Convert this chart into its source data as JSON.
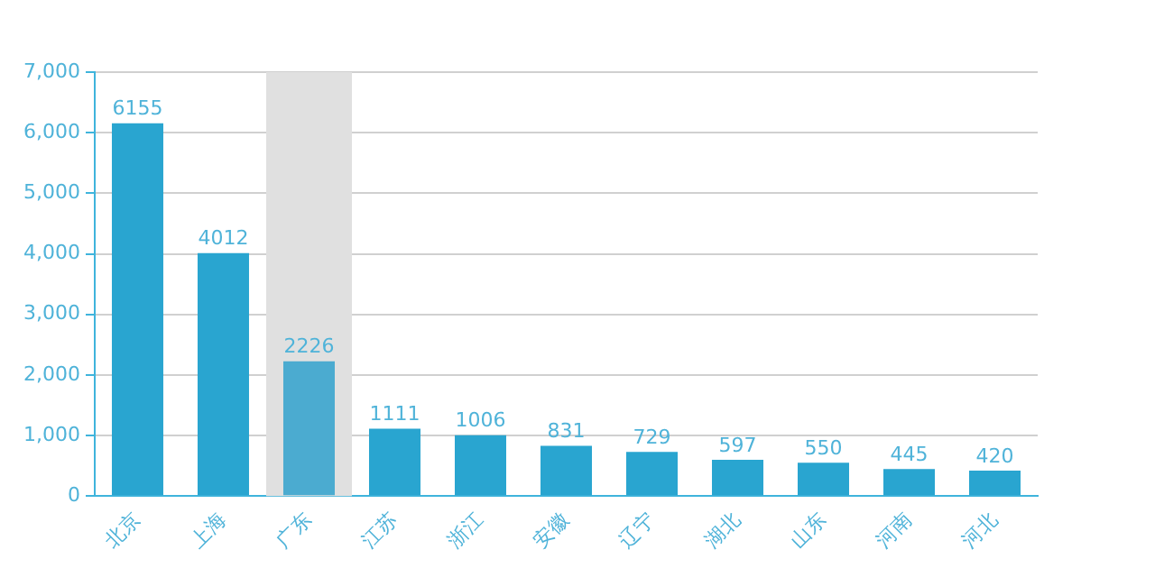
{
  "chart_data": {
    "type": "bar",
    "categories": [
      "北京",
      "上海",
      "广东",
      "江苏",
      "浙江",
      "安徽",
      "辽宁",
      "湖北",
      "山东",
      "河南",
      "河北"
    ],
    "values": [
      6155,
      4012,
      2226,
      1111,
      1006,
      831,
      729,
      597,
      550,
      445,
      420
    ],
    "colors": [
      "#29a5d0",
      "#29a5d0",
      "#4babd0",
      "#29a5d0",
      "#29a5d0",
      "#29a5d0",
      "#29a5d0",
      "#29a5d0",
      "#29a5d0",
      "#29a5d0",
      "#29a5d0"
    ],
    "ylim": [
      0,
      7000
    ],
    "yticks": [
      0,
      {
        "value": 1000,
        "label": "1,000"
      },
      {
        "value": 2000,
        "label": "2,000"
      },
      {
        "value": 3000,
        "label": "3,000"
      },
      {
        "value": 4000,
        "label": "4,000"
      },
      {
        "value": 5000,
        "label": "5,000"
      },
      {
        "value": 6000,
        "label": "6,000"
      },
      {
        "value": 7000,
        "label": "7,000"
      }
    ],
    "grid": "y",
    "data_labels": true,
    "bands": [
      {
        "axis": "x",
        "from": "广东",
        "to": "广东",
        "color": "#e0e0e0"
      }
    ]
  }
}
